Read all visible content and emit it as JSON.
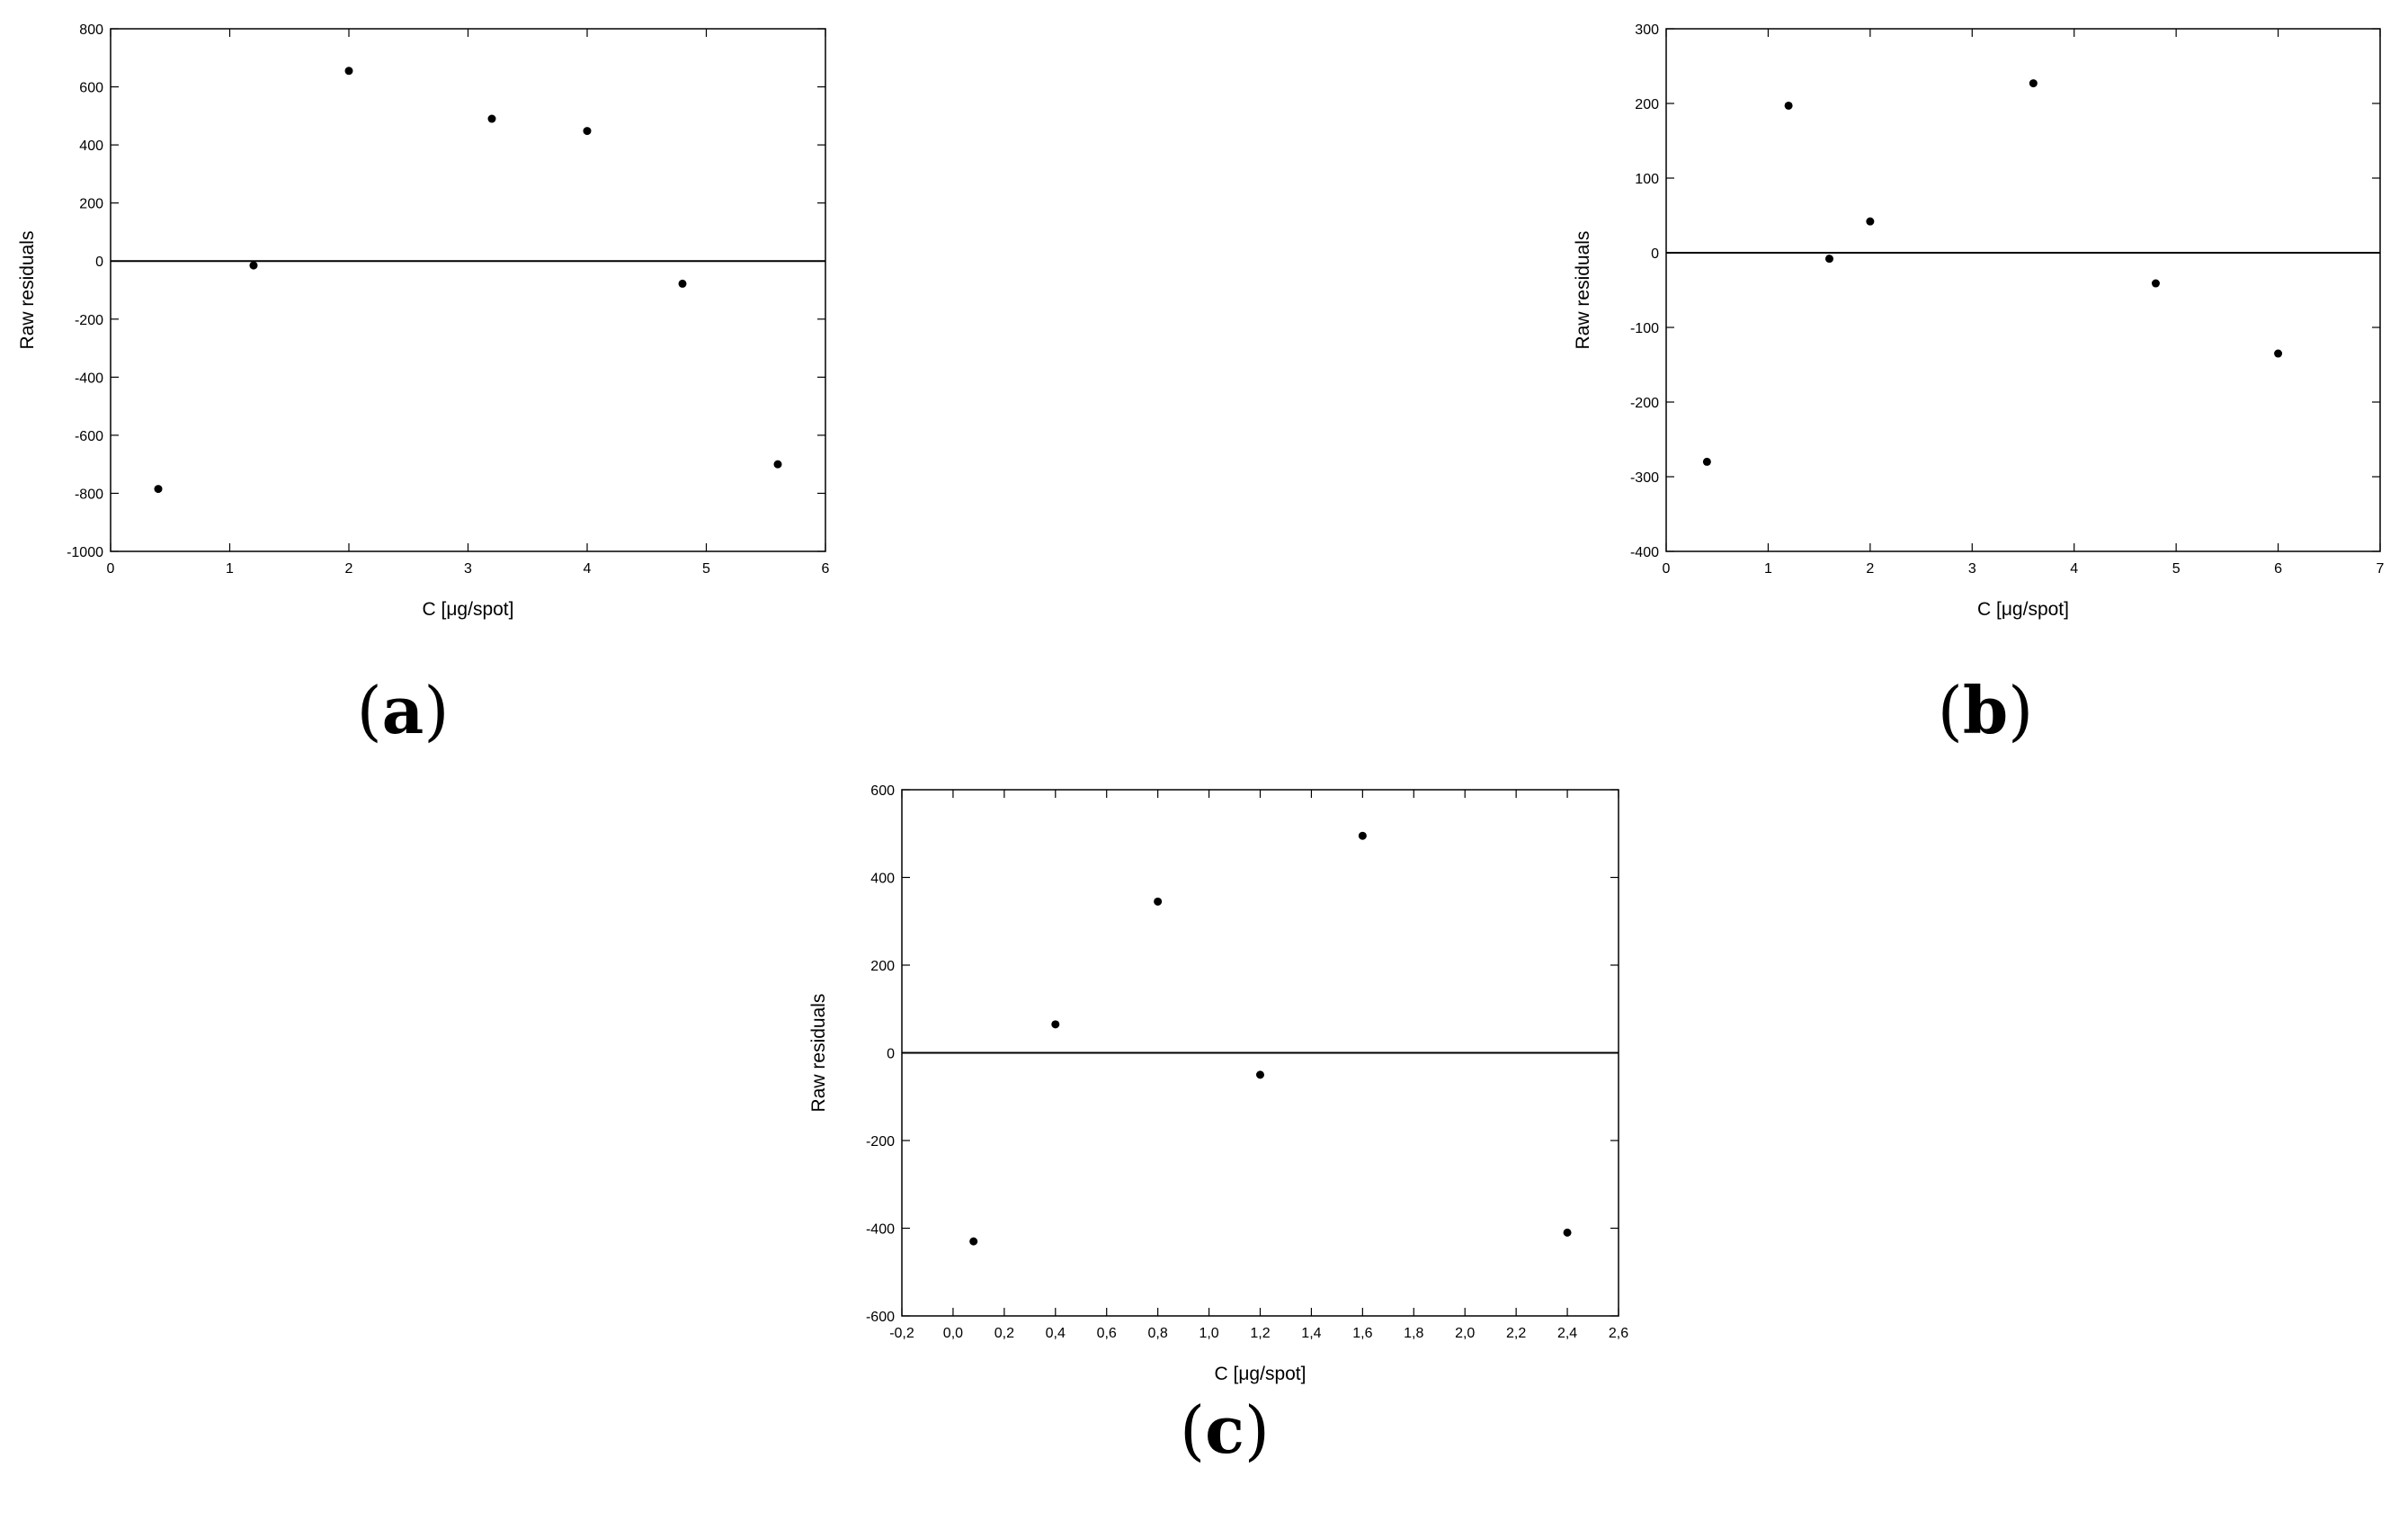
{
  "chart_data": [
    {
      "panel": "a",
      "type": "scatter",
      "panel_label": "(a)",
      "xlabel": "C [μg/spot]",
      "ylabel": "Raw residuals",
      "xlim": [
        0,
        6
      ],
      "ylim": [
        -1000,
        800
      ],
      "x_ticks": [
        0,
        1,
        2,
        3,
        4,
        5,
        6
      ],
      "x_tick_labels": [
        "0",
        "1",
        "2",
        "3",
        "4",
        "5",
        "6"
      ],
      "y_ticks": [
        -1000,
        -800,
        -600,
        -400,
        -200,
        0,
        200,
        400,
        600,
        800
      ],
      "y_tick_labels": [
        "-1000",
        "-800",
        "-600",
        "-400",
        "-200",
        "0",
        "200",
        "400",
        "600",
        "800"
      ],
      "reference_line": 0,
      "points": [
        {
          "x": 0.4,
          "y": -785
        },
        {
          "x": 1.2,
          "y": -15
        },
        {
          "x": 2.0,
          "y": 655
        },
        {
          "x": 3.2,
          "y": 490
        },
        {
          "x": 4.0,
          "y": 448
        },
        {
          "x": 4.8,
          "y": -78
        },
        {
          "x": 5.6,
          "y": -700
        }
      ]
    },
    {
      "panel": "b",
      "type": "scatter",
      "panel_label": "(b)",
      "xlabel": "C [μg/spot]",
      "ylabel": "Raw residuals",
      "xlim": [
        0,
        7
      ],
      "ylim": [
        -400,
        300
      ],
      "x_ticks": [
        0,
        1,
        2,
        3,
        4,
        5,
        6,
        7
      ],
      "x_tick_labels": [
        "0",
        "1",
        "2",
        "3",
        "4",
        "5",
        "6",
        "7"
      ],
      "y_ticks": [
        -400,
        -300,
        -200,
        -100,
        0,
        100,
        200,
        300
      ],
      "y_tick_labels": [
        "-400",
        "-300",
        "-200",
        "-100",
        "0",
        "100",
        "200",
        "300"
      ],
      "reference_line": 0,
      "points": [
        {
          "x": 0.4,
          "y": -280
        },
        {
          "x": 1.2,
          "y": 197
        },
        {
          "x": 1.6,
          "y": -8
        },
        {
          "x": 2.0,
          "y": 42
        },
        {
          "x": 3.6,
          "y": 227
        },
        {
          "x": 4.8,
          "y": -41
        },
        {
          "x": 6.0,
          "y": -135
        }
      ]
    },
    {
      "panel": "c",
      "type": "scatter",
      "panel_label": "(c)",
      "xlabel": "C [μg/spot]",
      "ylabel": "Raw residuals",
      "xlim": [
        -0.2,
        2.6
      ],
      "ylim": [
        -600,
        600
      ],
      "x_ticks": [
        -0.2,
        0.0,
        0.2,
        0.4,
        0.6,
        0.8,
        1.0,
        1.2,
        1.4,
        1.6,
        1.8,
        2.0,
        2.2,
        2.4,
        2.6
      ],
      "x_tick_labels": [
        "-0,2",
        "0,0",
        "0,2",
        "0,4",
        "0,6",
        "0,8",
        "1,0",
        "1,2",
        "1,4",
        "1,6",
        "1,8",
        "2,0",
        "2,2",
        "2,4",
        "2,6"
      ],
      "y_ticks": [
        -600,
        -400,
        -200,
        0,
        200,
        400,
        600
      ],
      "y_tick_labels": [
        "-600",
        "-400",
        "-200",
        "0",
        "200",
        "400",
        "600"
      ],
      "reference_line": 0,
      "points": [
        {
          "x": 0.08,
          "y": -430
        },
        {
          "x": 0.4,
          "y": 65
        },
        {
          "x": 0.8,
          "y": 345
        },
        {
          "x": 1.2,
          "y": -50
        },
        {
          "x": 1.6,
          "y": 495
        },
        {
          "x": 2.4,
          "y": -410
        }
      ]
    }
  ]
}
